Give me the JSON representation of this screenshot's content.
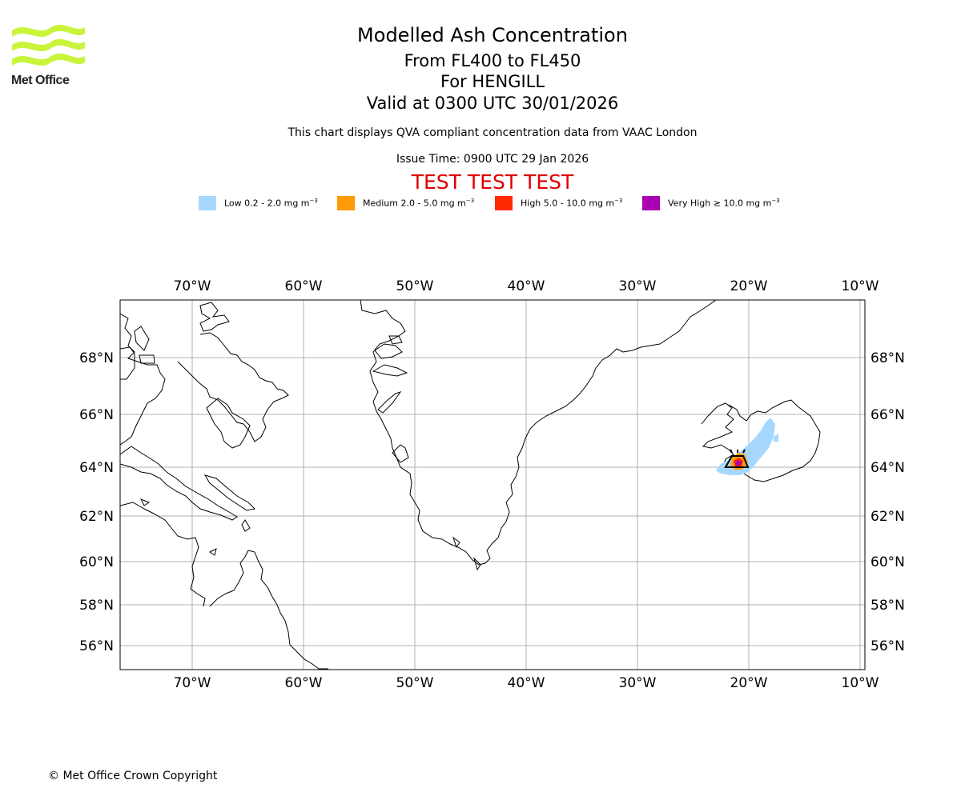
{
  "header": {
    "title": "Modelled Ash Concentration",
    "levels": "From FL400 to FL450",
    "volcano": "For HENGILL",
    "valid": "Valid at 0300 UTC 30/01/2026",
    "subtitle": "This chart displays QVA compliant concentration data from VAAC London",
    "issue_time": "Issue Time: 0900 UTC 29 Jan 2026",
    "test_banner": "TEST TEST TEST",
    "test_color": "#e00000"
  },
  "logo": {
    "text": "Met Office",
    "color": "#c8f53c"
  },
  "legend": [
    {
      "label": "Low 0.2 - 2.0 mg m",
      "exp": "−3",
      "color": "#a6d8ff"
    },
    {
      "label": "Medium 2.0 - 5.0 mg m",
      "exp": "−3",
      "color": "#ff9b08"
    },
    {
      "label": "High 5.0 - 10.0 mg m",
      "exp": "−3",
      "color": "#ff2a00"
    },
    {
      "label": "Very High ≥ 10.0 mg m",
      "exp": "−3",
      "color": "#a800b2"
    }
  ],
  "map": {
    "lon_ticks": [
      "70°W",
      "60°W",
      "50°W",
      "40°W",
      "30°W",
      "20°W",
      "10°W"
    ],
    "lat_ticks": [
      "68°N",
      "66°N",
      "64°N",
      "62°N",
      "60°N",
      "58°N",
      "56°N"
    ],
    "lon_values": [
      -70,
      -60,
      -50,
      -40,
      -30,
      -20,
      -10
    ],
    "lat_values": [
      68,
      66,
      64,
      62,
      60,
      58,
      56
    ],
    "grid_color": "#b0b0b0"
  },
  "footer": {
    "copyright": "© Met Office Crown Copyright"
  }
}
